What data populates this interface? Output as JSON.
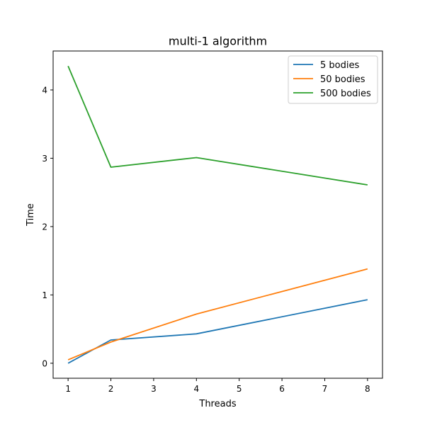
{
  "chart_data": {
    "type": "line",
    "title": "multi-1 algorithm",
    "xlabel": "Threads",
    "ylabel": "Time",
    "x": [
      1,
      2,
      4,
      8
    ],
    "xticks": [
      "1",
      "2",
      "3",
      "4",
      "5",
      "6",
      "7",
      "8"
    ],
    "yticks": [
      "0",
      "1",
      "2",
      "3",
      "4"
    ],
    "xlim": [
      0.65,
      8.35
    ],
    "ylim": [
      -0.22,
      4.57
    ],
    "grid": false,
    "legend": "top-right",
    "series": [
      {
        "name": "5 bodies",
        "values": [
          0.0,
          0.34,
          0.43,
          0.93
        ],
        "color": "#1f77b4"
      },
      {
        "name": "50 bodies",
        "values": [
          0.05,
          0.31,
          0.72,
          1.38
        ],
        "color": "#ff7f0e"
      },
      {
        "name": "500 bodies",
        "values": [
          4.35,
          2.87,
          3.01,
          2.61
        ],
        "color": "#2ca02c"
      }
    ]
  }
}
